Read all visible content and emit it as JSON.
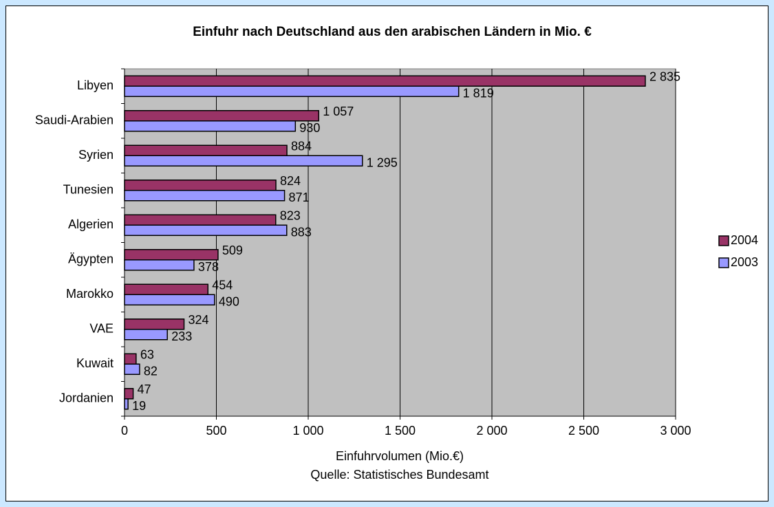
{
  "chart_data": {
    "type": "hbar",
    "title": "Einfuhr nach Deutschland  aus den arabischen Ländern in Mio. €",
    "xlabel": "Einfuhrvolumen (Mio.€)",
    "note": "Quelle: Statistisches Bundesamt",
    "categories": [
      "Libyen",
      "Saudi-Arabien",
      "Syrien",
      "Tunesien",
      "Algerien",
      "Ägypten",
      "Marokko",
      "VAE",
      "Kuwait",
      "Jordanien"
    ],
    "series": [
      {
        "name": "2004",
        "color": "#993366",
        "values": [
          2835,
          1057,
          884,
          824,
          823,
          509,
          454,
          324,
          63,
          47
        ],
        "value_labels": [
          "2 835",
          "1 057",
          "884",
          "824",
          "823",
          "509",
          "454",
          "324",
          "63",
          "47"
        ]
      },
      {
        "name": "2003",
        "color": "#9999ff",
        "values": [
          1819,
          930,
          1295,
          871,
          883,
          378,
          490,
          233,
          82,
          19
        ],
        "value_labels": [
          "1 819",
          "930",
          "1 295",
          "871",
          "883",
          "378",
          "490",
          "233",
          "82",
          "19"
        ]
      }
    ],
    "xlim": [
      0,
      3000
    ],
    "xticks": [
      0,
      500,
      {
        "value": 1000,
        "label": "1 000"
      },
      {
        "value": 1500,
        "label": "1 500"
      },
      {
        "value": 2000,
        "label": "2 000"
      },
      {
        "value": 2500,
        "label": "2 500"
      },
      {
        "value": 3000,
        "label": "3 000"
      }
    ],
    "grid": true,
    "legend": "right",
    "plot_background": "#c0c0c0"
  }
}
